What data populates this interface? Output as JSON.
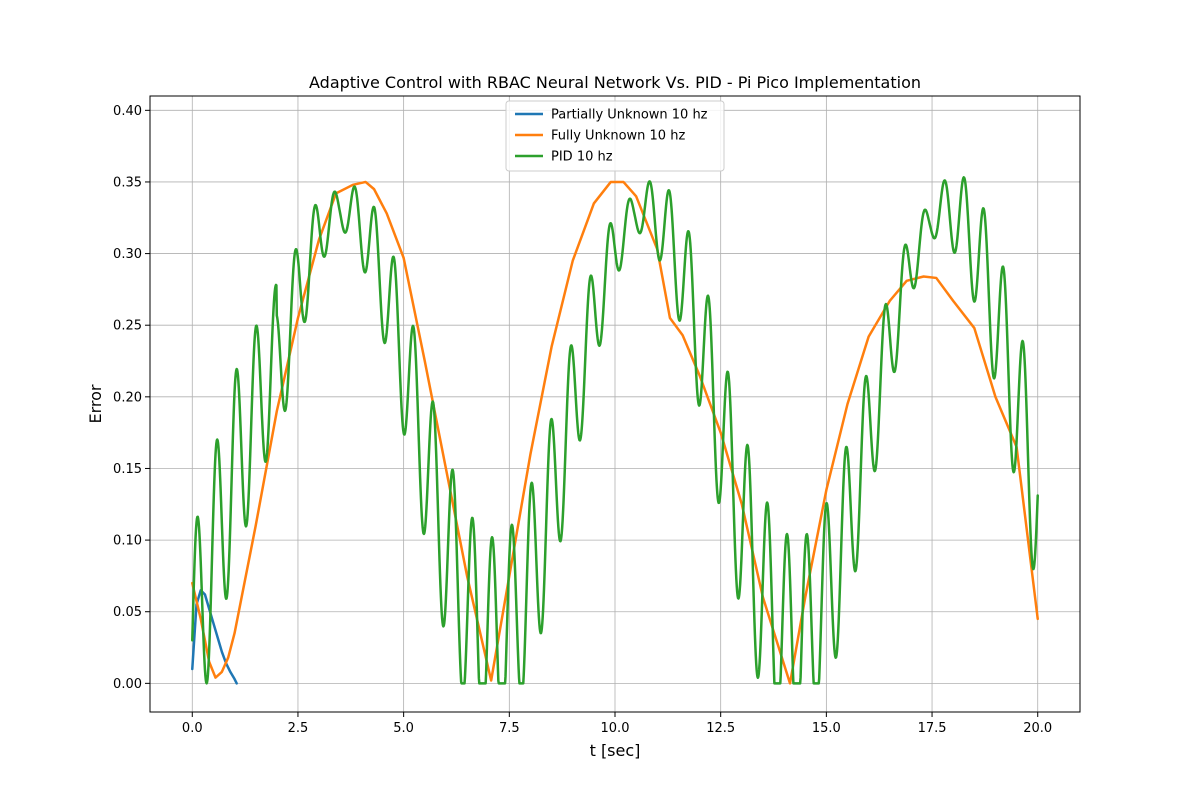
{
  "chart_data": {
    "type": "line",
    "title": "Adaptive Control with RBAC Neural Network Vs. PID - Pi Pico Implementation",
    "xlabel": "t [sec]",
    "ylabel": "Error",
    "xlim": [
      -1.0,
      21.0
    ],
    "ylim": [
      -0.02,
      0.41
    ],
    "xticks": [
      0.0,
      2.5,
      5.0,
      7.5,
      10.0,
      12.5,
      15.0,
      17.5,
      20.0
    ],
    "xtick_labels": [
      "0.0",
      "2.5",
      "5.0",
      "7.5",
      "10.0",
      "12.5",
      "15.0",
      "17.5",
      "20.0"
    ],
    "yticks": [
      0.0,
      0.05,
      0.1,
      0.15,
      0.2,
      0.25,
      0.3,
      0.35,
      0.4
    ],
    "ytick_labels": [
      "0.00",
      "0.05",
      "0.10",
      "0.15",
      "0.20",
      "0.25",
      "0.30",
      "0.35",
      "0.40"
    ],
    "grid": true,
    "legend_position": "top-center",
    "series": [
      {
        "name": "Partially Unknown 10 hz",
        "color": "#1f77b4",
        "x": [
          0.0,
          0.1,
          0.2,
          0.3,
          0.4,
          0.5,
          0.6,
          0.7,
          0.8,
          0.9,
          1.0,
          1.05
        ],
        "y": [
          0.01,
          0.055,
          0.065,
          0.062,
          0.052,
          0.042,
          0.032,
          0.022,
          0.014,
          0.008,
          0.003,
          0.0
        ]
      },
      {
        "name": "Fully Unknown 10 hz",
        "color": "#ff7f0e",
        "x": [
          0.0,
          0.2,
          0.4,
          0.55,
          0.7,
          0.85,
          1.0,
          1.5,
          2.0,
          2.5,
          3.0,
          3.4,
          3.8,
          4.1,
          4.3,
          4.6,
          5.0,
          5.5,
          6.0,
          6.5,
          7.07,
          7.5,
          8.0,
          8.5,
          9.0,
          9.5,
          9.9,
          10.2,
          10.5,
          11.0,
          11.3,
          11.6,
          12.0,
          12.5,
          13.0,
          13.5,
          14.14,
          14.5,
          15.0,
          15.5,
          16.0,
          16.5,
          16.9,
          17.3,
          17.6,
          18.0,
          18.5,
          19.0,
          19.5,
          20.0
        ],
        "y": [
          0.07,
          0.045,
          0.015,
          0.004,
          0.008,
          0.018,
          0.035,
          0.11,
          0.19,
          0.255,
          0.31,
          0.342,
          0.348,
          0.35,
          0.345,
          0.328,
          0.297,
          0.225,
          0.15,
          0.075,
          0.002,
          0.075,
          0.16,
          0.235,
          0.295,
          0.335,
          0.35,
          0.35,
          0.34,
          0.303,
          0.255,
          0.243,
          0.215,
          0.175,
          0.125,
          0.06,
          0.0,
          0.06,
          0.135,
          0.195,
          0.242,
          0.267,
          0.281,
          0.284,
          0.283,
          0.267,
          0.248,
          0.2,
          0.165,
          0.045
        ]
      },
      {
        "name": "PID 10 hz",
        "color": "#2ca02c",
        "x": [],
        "y": []
      }
    ]
  }
}
